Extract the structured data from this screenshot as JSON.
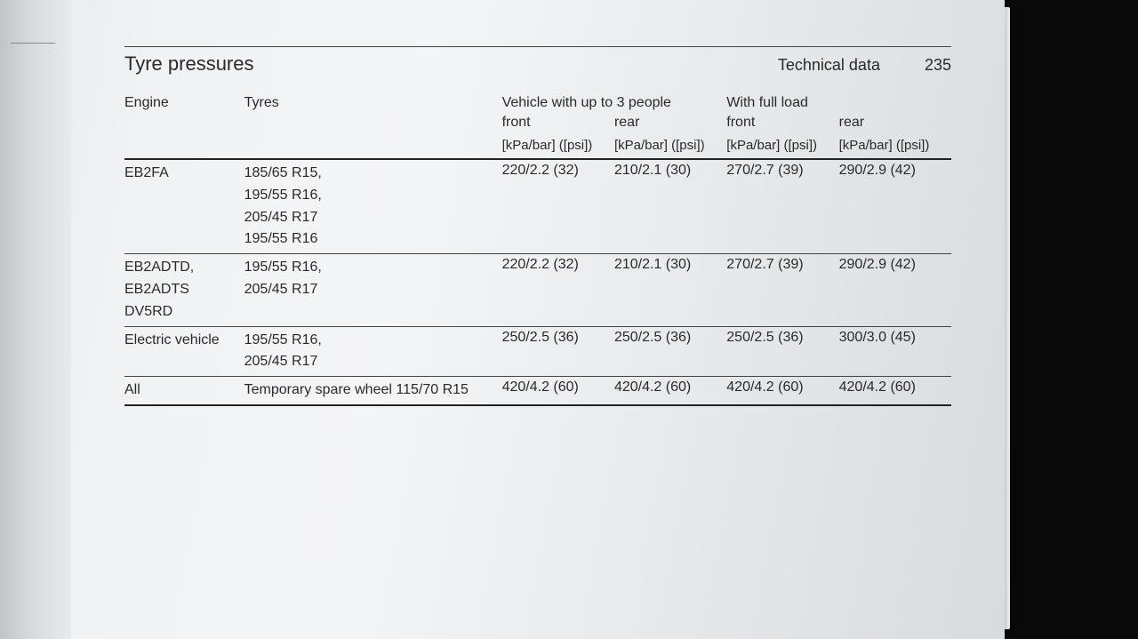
{
  "header": {
    "section": "Technical data",
    "page_number": "235",
    "title": "Tyre pressures"
  },
  "table": {
    "columns": {
      "engine": "Engine",
      "tyres": "Tyres",
      "group1": "Vehicle with up to 3 people",
      "group2": "With full load",
      "sub_front": "front",
      "sub_rear": "rear",
      "unit": "[kPa/bar] ([psi])"
    },
    "rows": [
      {
        "engine": [
          "EB2FA"
        ],
        "tyres": [
          "185/65 R15,",
          "195/55 R16,",
          "205/45 R17",
          "195/55 R16"
        ],
        "vals": [
          "220/2.2 (32)",
          "210/2.1 (30)",
          "270/2.7 (39)",
          "290/2.9 (42)"
        ]
      },
      {
        "engine": [
          "EB2ADTD,",
          "EB2ADTS",
          "DV5RD"
        ],
        "tyres": [
          "195/55 R16,",
          "205/45 R17"
        ],
        "vals": [
          "220/2.2 (32)",
          "210/2.1 (30)",
          "270/2.7 (39)",
          "290/2.9 (42)"
        ]
      },
      {
        "engine": [
          "Electric vehicle"
        ],
        "tyres": [
          "195/55 R16,",
          "205/45 R17"
        ],
        "vals": [
          "250/2.5 (36)",
          "250/2.5 (36)",
          "250/2.5 (36)",
          "300/3.0 (45)"
        ]
      },
      {
        "engine": [
          "All"
        ],
        "tyres": [
          "Temporary spare wheel 115/70 R15"
        ],
        "vals": [
          "420/4.2 (60)",
          "420/4.2 (60)",
          "420/4.2 (60)",
          "420/4.2 (60)"
        ]
      }
    ]
  },
  "style": {
    "page_bg": "#f0f2f4",
    "text_color": "#2a2a2a",
    "rule_color": "#222222",
    "font_size_body": 16,
    "font_size_title": 22
  }
}
